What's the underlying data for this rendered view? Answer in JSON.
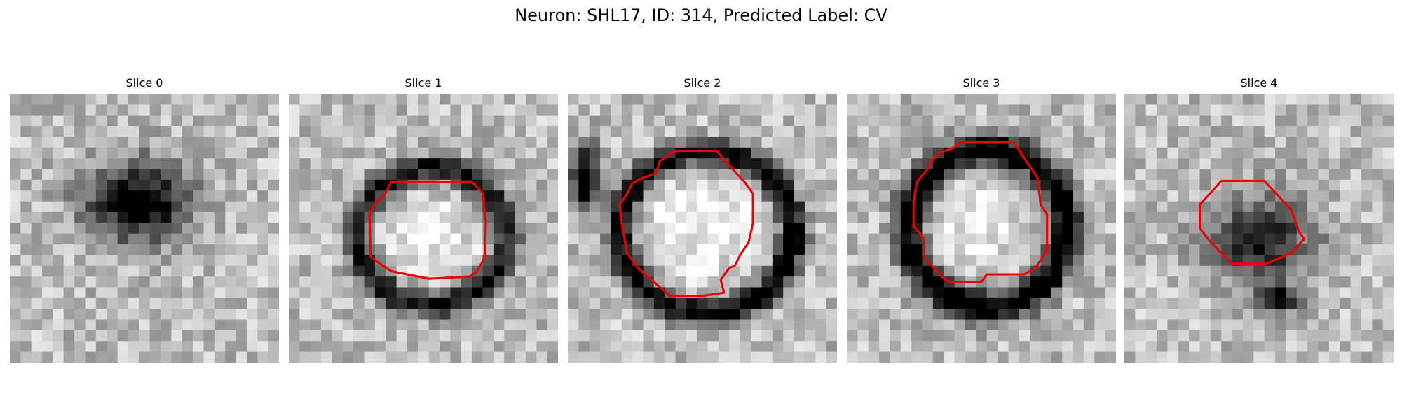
{
  "figure": {
    "title": "Neuron: SHL17, ID: 314, Predicted Label: CV",
    "contour_color": "#ee0000",
    "colormap": "grayscale",
    "axes": "off"
  },
  "panels": [
    {
      "title": "Slice 0",
      "has_contour": false,
      "dark_blob": [
        {
          "cx": 11.5,
          "cy": 9.5,
          "rx": 5.5,
          "ry": 4.2,
          "o": 0.85
        }
      ],
      "dark_ring": null,
      "bright_center": null
    },
    {
      "title": "Slice 1",
      "has_contour": true,
      "contour": [
        [
          13.5,
          8.2
        ],
        [
          17,
          8.2
        ],
        [
          18,
          9.2
        ],
        [
          18.3,
          12
        ],
        [
          18.2,
          15.2
        ],
        [
          17.5,
          16.5
        ],
        [
          16.8,
          17
        ],
        [
          13,
          17.2
        ],
        [
          9.5,
          16.5
        ],
        [
          7.6,
          15.2
        ],
        [
          7.5,
          11.2
        ],
        [
          8,
          10.2
        ],
        [
          9,
          9.2
        ],
        [
          9.5,
          8.2
        ]
      ],
      "dark_ring": {
        "cx": 12.8,
        "cy": 12.8,
        "rx": 6.9,
        "ry": 6.3,
        "w": 1.8,
        "o": 0.7
      },
      "dark_blob": [],
      "bright_center": {
        "cx": 12.8,
        "cy": 12.6,
        "rx": 4.6,
        "ry": 3.6
      }
    },
    {
      "title": "Slice 2",
      "has_contour": true,
      "contour": [
        [
          10,
          5.3
        ],
        [
          13.8,
          5.3
        ],
        [
          15.3,
          7
        ],
        [
          16.5,
          8.3
        ],
        [
          17.2,
          9.3
        ],
        [
          17.2,
          12
        ],
        [
          16.8,
          13.8
        ],
        [
          16,
          15
        ],
        [
          15.5,
          16
        ],
        [
          15,
          16.2
        ],
        [
          14.2,
          17.3
        ],
        [
          14.5,
          18.5
        ],
        [
          12.5,
          18.8
        ],
        [
          9.5,
          18.8
        ],
        [
          8,
          17.5
        ],
        [
          6.5,
          16.2
        ],
        [
          5.5,
          14.8
        ],
        [
          5,
          12
        ],
        [
          4.8,
          10.3
        ],
        [
          5.5,
          9.3
        ],
        [
          6,
          8.3
        ],
        [
          7,
          7.8
        ],
        [
          8.2,
          7.4
        ],
        [
          8.5,
          6.3
        ],
        [
          9.2,
          5.8
        ]
      ],
      "dark_ring": {
        "cx": 12.4,
        "cy": 12.4,
        "rx": 8.0,
        "ry": 7.5,
        "w": 1.8,
        "o": 0.85
      },
      "dark_blob": [
        {
          "cx": 1.2,
          "cy": 7.5,
          "rx": 1.5,
          "ry": 3.5,
          "o": 0.9
        }
      ],
      "bright_center": {
        "cx": 11.5,
        "cy": 12,
        "rx": 6,
        "ry": 5.5
      }
    },
    {
      "title": "Slice 3",
      "has_contour": true,
      "contour": [
        [
          10.5,
          4.5
        ],
        [
          15.5,
          4.5
        ],
        [
          17.7,
          7.8
        ],
        [
          18,
          10.3
        ],
        [
          18.6,
          11.2
        ],
        [
          18.6,
          14.5
        ],
        [
          18.2,
          15.2
        ],
        [
          17.5,
          16.2
        ],
        [
          16.5,
          16.8
        ],
        [
          13,
          16.8
        ],
        [
          12.5,
          17.5
        ],
        [
          9.5,
          17.5
        ],
        [
          8.8,
          17
        ],
        [
          7.2,
          15.2
        ],
        [
          7.2,
          13.5
        ],
        [
          6.8,
          13
        ],
        [
          6.2,
          12.3
        ],
        [
          6.2,
          10
        ],
        [
          6.5,
          8.2
        ],
        [
          7.5,
          7
        ],
        [
          7.5,
          6.8
        ],
        [
          8.5,
          5.5
        ],
        [
          10,
          5
        ]
      ],
      "dark_ring": {
        "cx": 12.6,
        "cy": 12,
        "rx": 7.3,
        "ry": 7.3,
        "w": 2.2,
        "o": 0.85
      },
      "dark_blob": [
        {
          "cx": 13.5,
          "cy": 5,
          "rx": 1.2,
          "ry": 0.8,
          "o": 0.9
        }
      ],
      "bright_center": {
        "cx": 11.5,
        "cy": 11.5,
        "rx": 4.5,
        "ry": 4.5
      }
    },
    {
      "title": "Slice 4",
      "has_contour": true,
      "contour": [
        [
          9,
          8.1
        ],
        [
          13,
          8.1
        ],
        [
          15.5,
          10.8
        ],
        [
          16.2,
          12.8
        ],
        [
          16.7,
          13.5
        ],
        [
          15.5,
          14.8
        ],
        [
          13.2,
          15.8
        ],
        [
          10,
          15.8
        ],
        [
          8,
          13.8
        ],
        [
          7,
          12.5
        ],
        [
          7,
          10.3
        ],
        [
          8.2,
          9
        ]
      ],
      "dark_ring": null,
      "dark_blob": [
        {
          "cx": 12.2,
          "cy": 13.2,
          "rx": 5.5,
          "ry": 4.8,
          "o": 0.6
        },
        {
          "cx": 14,
          "cy": 18.5,
          "rx": 1.8,
          "ry": 1.2,
          "o": 0.75
        }
      ],
      "bright_center": null
    }
  ]
}
